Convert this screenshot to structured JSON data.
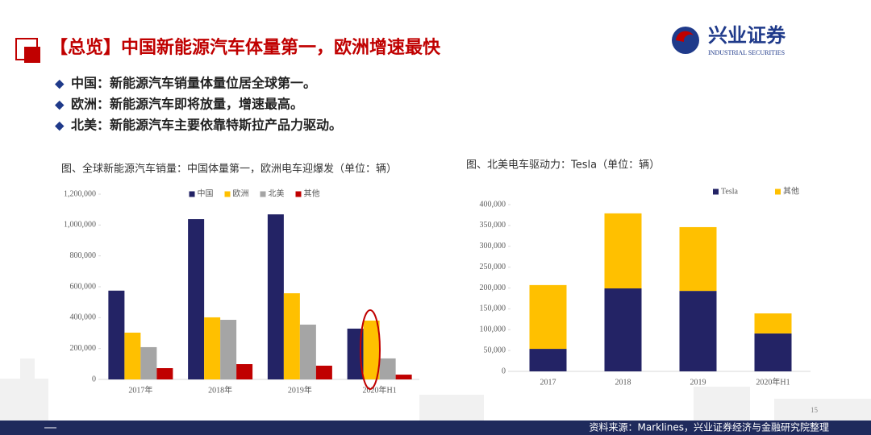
{
  "slide": {
    "title": "【总览】中国新能源汽车体量第一，欧洲增速最快",
    "bullets": [
      "中国：新能源汽车销量体量位居全球第一。",
      "欧洲：新能源汽车即将放量，增速最高。",
      "北美：新能源汽车主要依靠特斯拉产品力驱动。"
    ],
    "logo_name": "兴业证券",
    "logo_subtitle": "INDUSTRIAL SECURITIES",
    "page_number": 15,
    "source": "资料来源：Marklines，兴业证券经济与金融研究院整理"
  },
  "chart_data": [
    {
      "type": "bar",
      "title": "图、全球新能源汽车销量：中国体量第一，欧洲电车迎爆发（单位：辆）",
      "categories": [
        "2017年",
        "2018年",
        "2019年",
        "2020年H1"
      ],
      "series": [
        {
          "name": "中国",
          "color": "#232365",
          "values": [
            575000,
            1038000,
            1069000,
            329000
          ]
        },
        {
          "name": "欧洲",
          "color": "#ffc000",
          "values": [
            303000,
            402000,
            558000,
            381000
          ]
        },
        {
          "name": "北美",
          "color": "#a5a5a5",
          "values": [
            209000,
            386000,
            355000,
            136000
          ]
        },
        {
          "name": "其他",
          "color": "#c00000",
          "values": [
            73000,
            99000,
            89000,
            31000
          ]
        }
      ],
      "ylim": [
        0,
        1200000
      ],
      "yticks": [
        0,
        {
          "value": 200000,
          "label": "200,000"
        },
        {
          "value": 400000,
          "label": "400,000"
        },
        {
          "value": 600000,
          "label": "600,000"
        },
        {
          "value": 800000,
          "label": "800,000"
        },
        {
          "value": 1000000,
          "label": "1,000,000"
        },
        {
          "value": 1200000,
          "label": "1,200,000"
        }
      ],
      "stacked": false,
      "legend": "top"
    },
    {
      "type": "bar",
      "title": "图、北美电车驱动力：Tesla（单位：辆）",
      "categories": [
        "2017",
        "2018",
        "2019",
        "2020年H1"
      ],
      "series": [
        {
          "name": "Tesla",
          "color": "#232365",
          "values": [
            54000,
            199000,
            193000,
            91000
          ]
        },
        {
          "name": "其他",
          "color": "#ffc000",
          "values": [
            153000,
            180000,
            153000,
            48000
          ]
        }
      ],
      "ylim": [
        0,
        400000
      ],
      "yticks": [
        0,
        {
          "value": 50000,
          "label": "50,000"
        },
        {
          "value": 100000,
          "label": "100,000"
        },
        {
          "value": 150000,
          "label": "150,000"
        },
        {
          "value": 200000,
          "label": "200,000"
        },
        {
          "value": 250000,
          "label": "250,000"
        },
        {
          "value": 300000,
          "label": "300,000"
        },
        {
          "value": 350000,
          "label": "350,000"
        },
        {
          "value": 400000,
          "label": "400,000"
        }
      ],
      "stacked": true,
      "legend": "top-right"
    }
  ]
}
